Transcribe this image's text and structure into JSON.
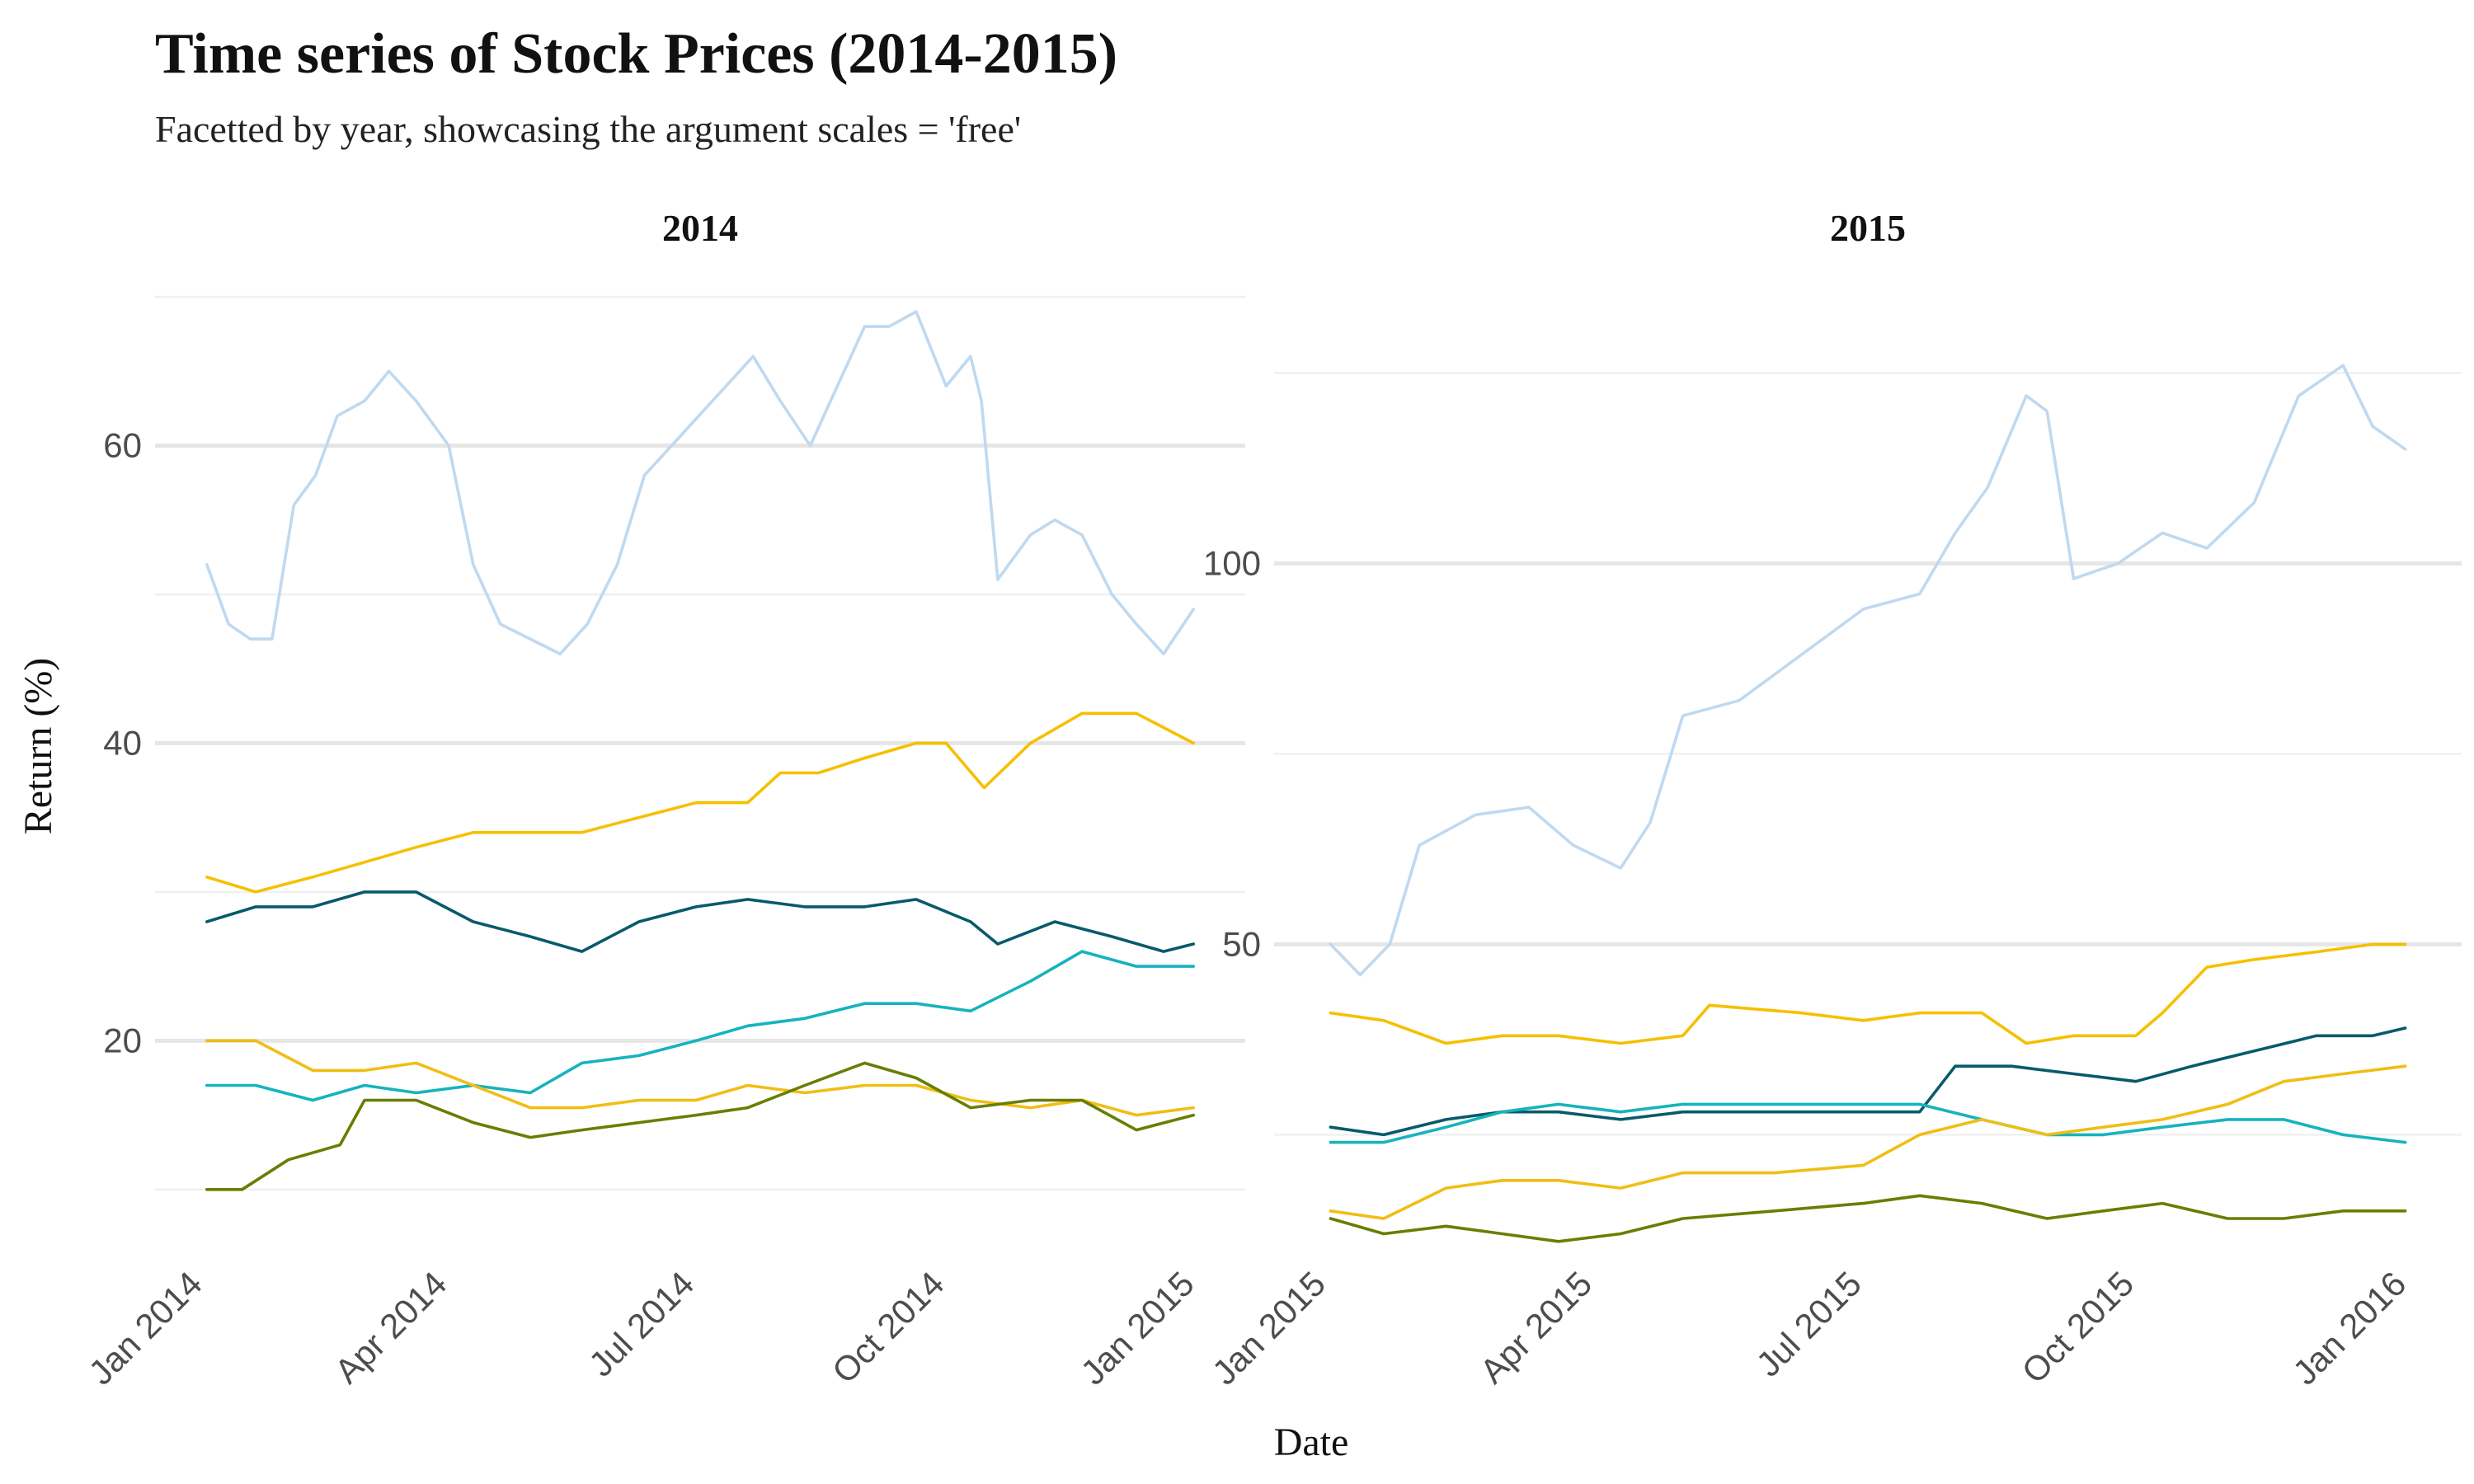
{
  "title": "Time series of Stock Prices (2014-2015)",
  "subtitle": "Facetted by year, showcasing the argument scales = 'free'",
  "colors": {
    "series": [
      "#BFD9F0",
      "#F5C000",
      "#075A6B",
      "#16B3BD",
      "#F0BE14",
      "#677F00"
    ],
    "grid_major": "#E6E6E6",
    "grid_minor": "#F0F0F0"
  },
  "chart_data": {
    "type": "line",
    "xlabel": "Date",
    "ylabel": "Return (%)",
    "grid": true,
    "legend": "none",
    "facets": [
      {
        "label": "2014",
        "xlim": [
          "2014-01-01",
          "2015-01-01"
        ],
        "x_ticks": [
          "Jan 2014",
          "Apr 2014",
          "Jul 2014",
          "Oct 2014",
          "Jan 2015"
        ],
        "ylim": [
          6,
          70
        ],
        "y_ticks": [
          20,
          40,
          60
        ],
        "series": [
          {
            "x": [
              "2014-01-02",
              "2014-01-10",
              "2014-01-18",
              "2014-01-26",
              "2014-02-03",
              "2014-02-11",
              "2014-02-19",
              "2014-03-01",
              "2014-03-10",
              "2014-03-20",
              "2014-04-01",
              "2014-04-10",
              "2014-04-20",
              "2014-05-01",
              "2014-05-12",
              "2014-05-22",
              "2014-06-02",
              "2014-06-12",
              "2014-06-22",
              "2014-07-02",
              "2014-07-12",
              "2014-07-22",
              "2014-08-01",
              "2014-08-12",
              "2014-08-22",
              "2014-09-01",
              "2014-09-10",
              "2014-09-20",
              "2014-10-01",
              "2014-10-10",
              "2014-10-14",
              "2014-10-20",
              "2014-11-01",
              "2014-11-10",
              "2014-11-20",
              "2014-12-01",
              "2014-12-10",
              "2014-12-20",
              "2014-12-31"
            ],
            "values": [
              52,
              48,
              47,
              47,
              56,
              58,
              62,
              63,
              65,
              63,
              60,
              52,
              48,
              47,
              46,
              48,
              52,
              58,
              60,
              62,
              64,
              66,
              63,
              60,
              64,
              68,
              68,
              69,
              64,
              66,
              63,
              51,
              54,
              55,
              54,
              50,
              48,
              46,
              49
            ]
          },
          {
            "x": [
              "2014-01-02",
              "2014-01-20",
              "2014-02-10",
              "2014-03-01",
              "2014-03-20",
              "2014-04-10",
              "2014-05-01",
              "2014-05-20",
              "2014-06-10",
              "2014-07-01",
              "2014-07-20",
              "2014-08-01",
              "2014-08-15",
              "2014-09-01",
              "2014-09-20",
              "2014-10-01",
              "2014-10-15",
              "2014-11-01",
              "2014-11-20",
              "2014-12-10",
              "2014-12-31"
            ],
            "values": [
              31,
              30,
              31,
              32,
              33,
              34,
              34,
              34,
              35,
              36,
              36,
              38,
              38,
              39,
              40,
              40,
              37,
              40,
              42,
              42,
              40
            ]
          },
          {
            "x": [
              "2014-01-02",
              "2014-01-20",
              "2014-02-10",
              "2014-03-01",
              "2014-03-20",
              "2014-04-10",
              "2014-05-01",
              "2014-05-20",
              "2014-06-10",
              "2014-07-01",
              "2014-07-20",
              "2014-08-10",
              "2014-09-01",
              "2014-09-20",
              "2014-10-10",
              "2014-10-20",
              "2014-11-10",
              "2014-12-01",
              "2014-12-20",
              "2014-12-31"
            ],
            "values": [
              28,
              29,
              29,
              30,
              30,
              28,
              27,
              26,
              28,
              29,
              29.5,
              29,
              29,
              29.5,
              28,
              26.5,
              28,
              27,
              26,
              26.5
            ]
          },
          {
            "x": [
              "2014-01-02",
              "2014-01-20",
              "2014-02-10",
              "2014-03-01",
              "2014-03-20",
              "2014-04-10",
              "2014-05-01",
              "2014-05-20",
              "2014-06-10",
              "2014-07-01",
              "2014-07-20",
              "2014-08-10",
              "2014-09-01",
              "2014-09-20",
              "2014-10-10",
              "2014-11-01",
              "2014-11-20",
              "2014-12-10",
              "2014-12-31"
            ],
            "values": [
              17,
              17,
              16,
              17,
              16.5,
              17,
              16.5,
              18.5,
              19,
              20,
              21,
              21.5,
              22.5,
              22.5,
              22,
              24,
              26,
              25,
              25
            ]
          },
          {
            "x": [
              "2014-01-02",
              "2014-01-20",
              "2014-02-10",
              "2014-03-01",
              "2014-03-20",
              "2014-04-10",
              "2014-05-01",
              "2014-05-20",
              "2014-06-10",
              "2014-07-01",
              "2014-07-20",
              "2014-08-10",
              "2014-09-01",
              "2014-09-20",
              "2014-10-10",
              "2014-11-01",
              "2014-11-20",
              "2014-12-10",
              "2014-12-31"
            ],
            "values": [
              20,
              20,
              18,
              18,
              18.5,
              17,
              15.5,
              15.5,
              16,
              16,
              17,
              16.5,
              17,
              17,
              16,
              15.5,
              16,
              15,
              15.5
            ]
          },
          {
            "x": [
              "2014-01-02",
              "2014-01-15",
              "2014-02-01",
              "2014-02-20",
              "2014-03-01",
              "2014-03-20",
              "2014-04-10",
              "2014-05-01",
              "2014-05-20",
              "2014-06-10",
              "2014-07-01",
              "2014-07-20",
              "2014-08-10",
              "2014-09-01",
              "2014-09-20",
              "2014-10-10",
              "2014-11-01",
              "2014-11-20",
              "2014-12-10",
              "2014-12-31"
            ],
            "values": [
              10,
              10,
              12,
              13,
              16,
              16,
              14.5,
              13.5,
              14,
              14.5,
              15,
              15.5,
              17,
              18.5,
              17.5,
              15.5,
              16,
              16,
              14,
              15
            ]
          }
        ]
      },
      {
        "label": "2015",
        "xlim": [
          "2015-01-01",
          "2016-01-01"
        ],
        "x_ticks": [
          "Jan 2015",
          "Apr 2015",
          "Jul 2015",
          "Oct 2015",
          "Jan 2016"
        ],
        "ylim": [
          10,
          135
        ],
        "y_ticks": [
          50,
          100
        ],
        "series": [
          {
            "x": [
              "2015-01-02",
              "2015-01-12",
              "2015-01-22",
              "2015-02-01",
              "2015-02-20",
              "2015-03-10",
              "2015-03-25",
              "2015-04-10",
              "2015-04-20",
              "2015-05-01",
              "2015-05-20",
              "2015-06-10",
              "2015-07-01",
              "2015-07-20",
              "2015-08-01",
              "2015-08-12",
              "2015-08-25",
              "2015-09-01",
              "2015-09-10",
              "2015-09-25",
              "2015-10-10",
              "2015-10-25",
              "2015-11-10",
              "2015-11-25",
              "2015-12-10",
              "2015-12-20",
              "2015-12-31"
            ],
            "values": [
              50,
              46,
              50,
              63,
              67,
              68,
              63,
              60,
              66,
              80,
              82,
              88,
              94,
              96,
              104,
              110,
              122,
              120,
              98,
              100,
              104,
              102,
              108,
              122,
              126,
              118,
              115
            ]
          },
          {
            "x": [
              "2015-01-02",
              "2015-01-20",
              "2015-02-10",
              "2015-03-01",
              "2015-03-20",
              "2015-04-10",
              "2015-05-01",
              "2015-05-10",
              "2015-06-10",
              "2015-07-01",
              "2015-07-20",
              "2015-08-10",
              "2015-08-25",
              "2015-09-10",
              "2015-10-01",
              "2015-10-10",
              "2015-10-25",
              "2015-11-10",
              "2015-12-01",
              "2015-12-20",
              "2015-12-31"
            ],
            "values": [
              41,
              40,
              37,
              38,
              38,
              37,
              38,
              42,
              41,
              40,
              41,
              41,
              37,
              38,
              38,
              41,
              47,
              48,
              49,
              50,
              50
            ]
          },
          {
            "x": [
              "2015-01-02",
              "2015-01-20",
              "2015-02-10",
              "2015-03-01",
              "2015-03-20",
              "2015-04-10",
              "2015-05-01",
              "2015-06-01",
              "2015-07-01",
              "2015-07-20",
              "2015-08-01",
              "2015-08-20",
              "2015-09-10",
              "2015-10-01",
              "2015-10-20",
              "2015-11-10",
              "2015-12-01",
              "2015-12-20",
              "2015-12-31"
            ],
            "values": [
              26,
              25,
              27,
              28,
              28,
              27,
              28,
              28,
              28,
              28,
              34,
              34,
              33,
              32,
              34,
              36,
              38,
              38,
              39
            ]
          },
          {
            "x": [
              "2015-01-02",
              "2015-01-20",
              "2015-02-10",
              "2015-03-01",
              "2015-03-20",
              "2015-04-10",
              "2015-05-01",
              "2015-06-01",
              "2015-07-01",
              "2015-07-20",
              "2015-08-10",
              "2015-09-01",
              "2015-09-20",
              "2015-10-10",
              "2015-11-01",
              "2015-11-20",
              "2015-12-10",
              "2015-12-31"
            ],
            "values": [
              24,
              24,
              26,
              28,
              29,
              28,
              29,
              29,
              29,
              29,
              27,
              25,
              25,
              26,
              27,
              27,
              25,
              24
            ]
          },
          {
            "x": [
              "2015-01-02",
              "2015-01-20",
              "2015-02-10",
              "2015-03-01",
              "2015-03-20",
              "2015-04-10",
              "2015-05-01",
              "2015-06-01",
              "2015-07-01",
              "2015-07-20",
              "2015-08-10",
              "2015-09-01",
              "2015-09-20",
              "2015-10-10",
              "2015-11-01",
              "2015-11-20",
              "2015-12-10",
              "2015-12-31"
            ],
            "values": [
              15,
              14,
              18,
              19,
              19,
              18,
              20,
              20,
              21,
              25,
              27,
              25,
              26,
              27,
              29,
              32,
              33,
              34
            ]
          },
          {
            "x": [
              "2015-01-02",
              "2015-01-20",
              "2015-02-10",
              "2015-03-01",
              "2015-03-20",
              "2015-04-10",
              "2015-05-01",
              "2015-06-01",
              "2015-07-01",
              "2015-07-20",
              "2015-08-10",
              "2015-09-01",
              "2015-09-20",
              "2015-10-10",
              "2015-11-01",
              "2015-11-20",
              "2015-12-10",
              "2015-12-31"
            ],
            "values": [
              14,
              12,
              13,
              12,
              11,
              12,
              14,
              15,
              16,
              17,
              16,
              14,
              15,
              16,
              14,
              14,
              15,
              15
            ]
          }
        ]
      }
    ]
  }
}
